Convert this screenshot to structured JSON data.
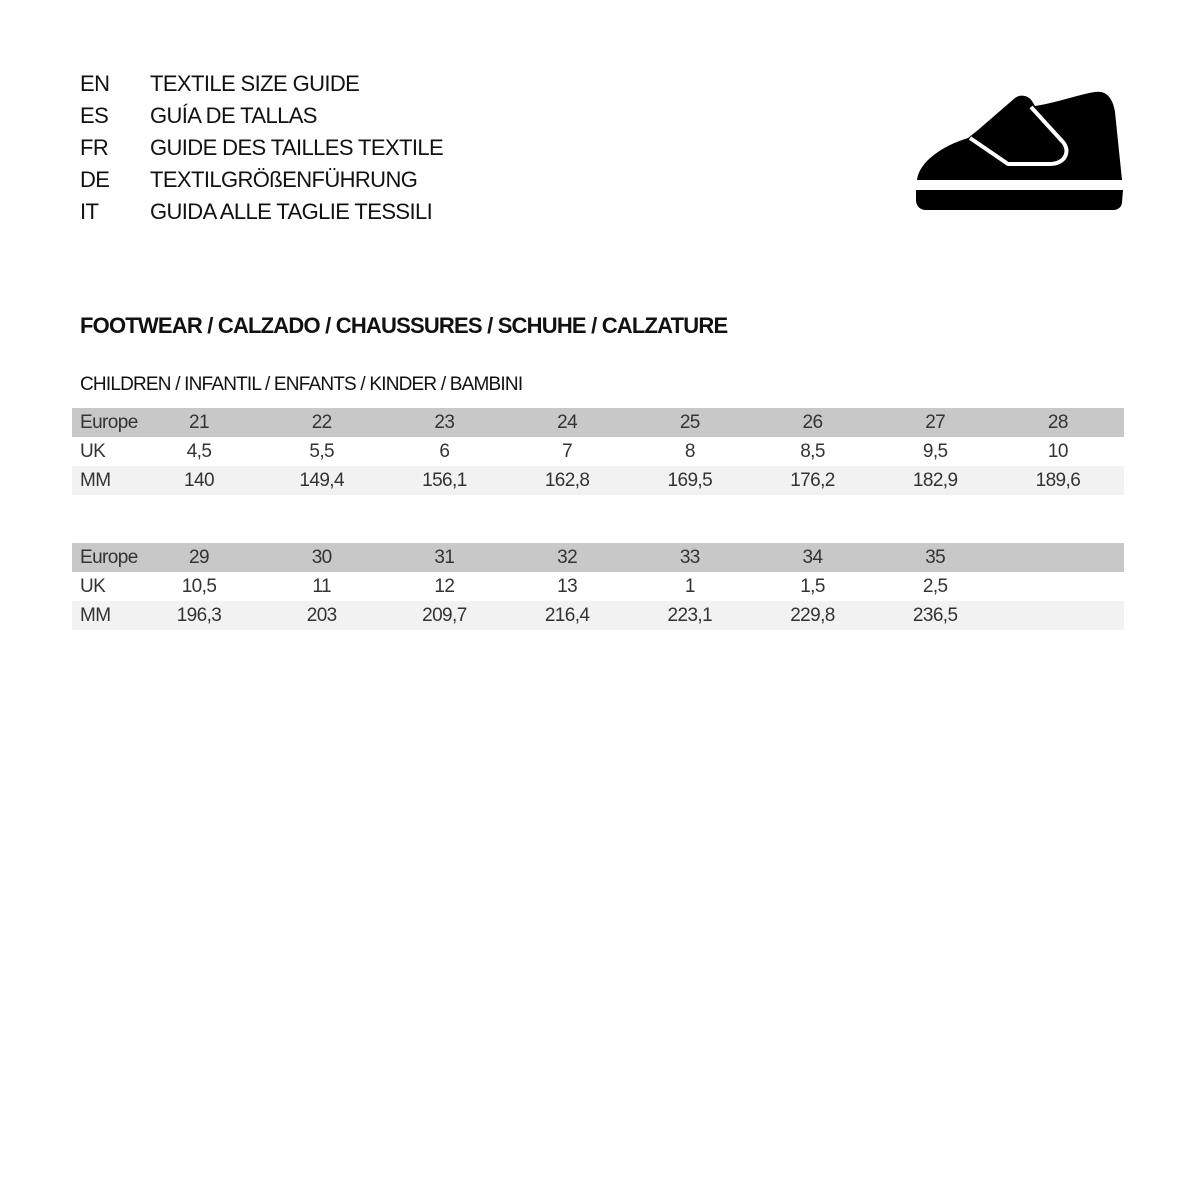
{
  "header": {
    "languages": [
      {
        "code": "EN",
        "title": "TEXTILE SIZE GUIDE"
      },
      {
        "code": "ES",
        "title": "GUÍA DE TALLAS"
      },
      {
        "code": "FR",
        "title": "GUIDE DES TAILLES TEXTILE"
      },
      {
        "code": "DE",
        "title": "TEXTILGRÖßENFÜHRUNG"
      },
      {
        "code": "IT",
        "title": "GUIDA ALLE TAGLIE TESSILI"
      }
    ],
    "icon": "children-velcro-shoe-icon"
  },
  "section_title": "FOOTWEAR / CALZADO / CHAUSSURES / SCHUHE / CALZATURE",
  "sub_title": "CHILDREN / INFANTIL / ENFANTS / KINDER / BAMBINI",
  "colors": {
    "header_row": "#c8c8c8",
    "alt_row": "#f2f2f2"
  },
  "tables": [
    {
      "rows": [
        {
          "label": "Europe",
          "values": [
            "21",
            "22",
            "23",
            "24",
            "25",
            "26",
            "27",
            "28"
          ]
        },
        {
          "label": "UK",
          "values": [
            "4,5",
            "5,5",
            "6",
            "7",
            "8",
            "8,5",
            "9,5",
            "10"
          ]
        },
        {
          "label": "MM",
          "values": [
            "140",
            "149,4",
            "156,1",
            "162,8",
            "169,5",
            "176,2",
            "182,9",
            "189,6"
          ]
        }
      ]
    },
    {
      "rows": [
        {
          "label": "Europe",
          "values": [
            "29",
            "30",
            "31",
            "32",
            "33",
            "34",
            "35"
          ]
        },
        {
          "label": "UK",
          "values": [
            "10,5",
            "11",
            "12",
            "13",
            "1",
            "1,5",
            "2,5"
          ]
        },
        {
          "label": "MM",
          "values": [
            "196,3",
            "203",
            "209,7",
            "216,4",
            "223,1",
            "229,8",
            "236,5"
          ]
        }
      ]
    }
  ]
}
